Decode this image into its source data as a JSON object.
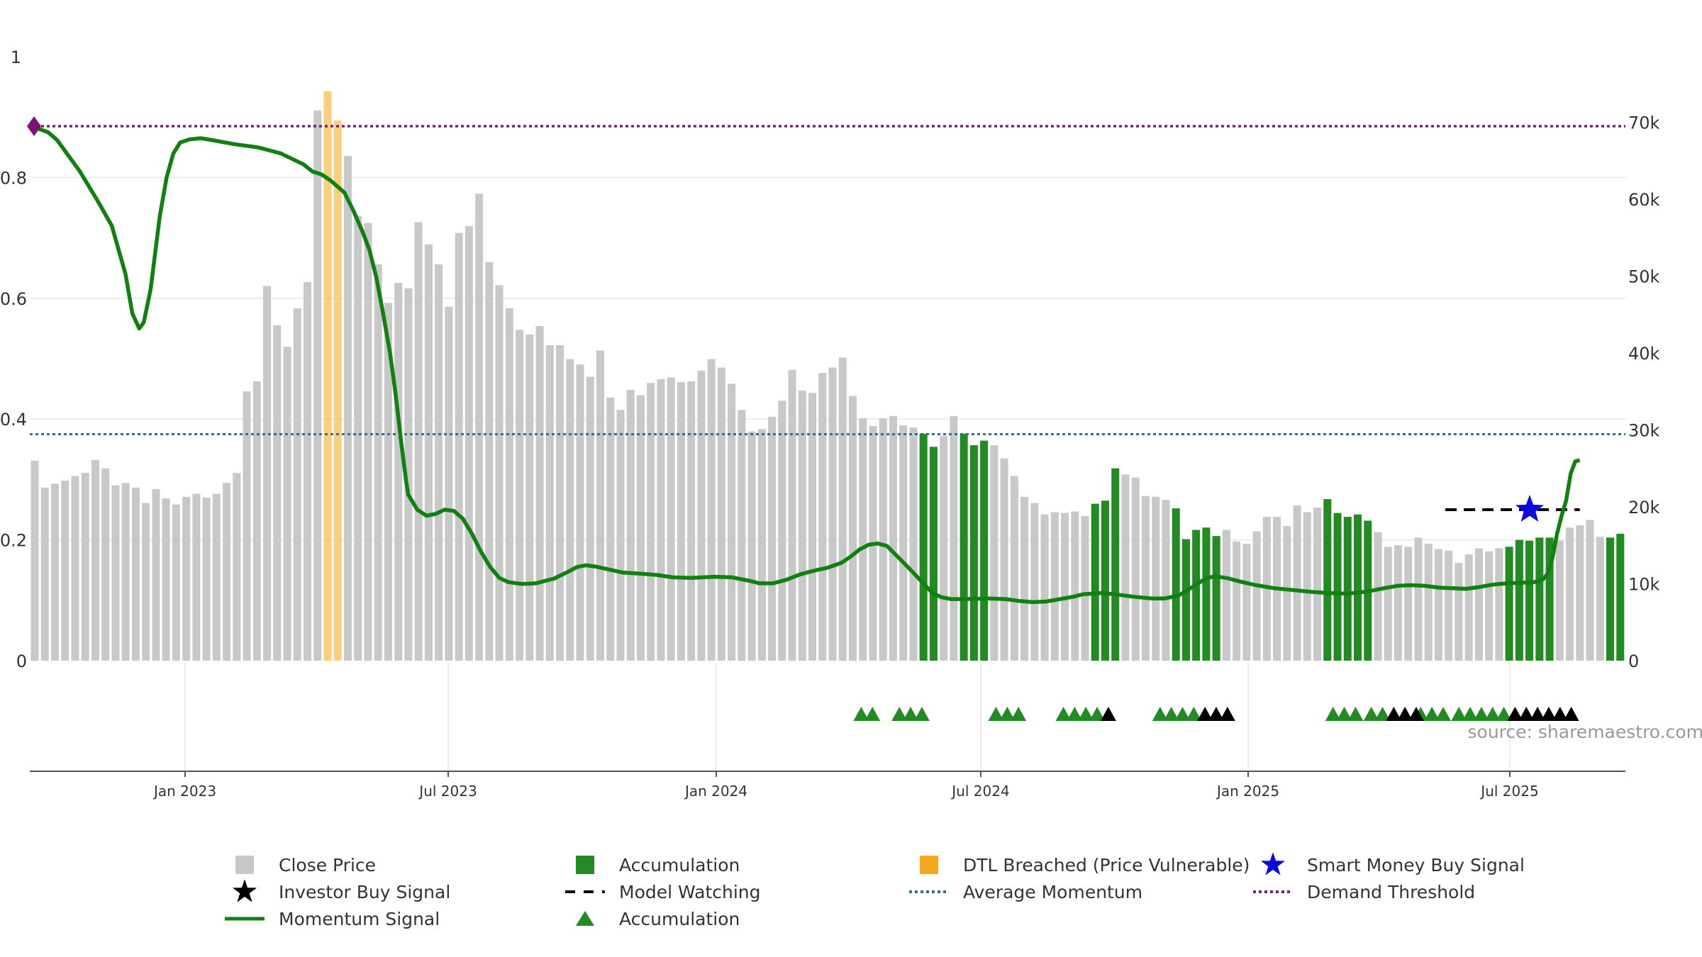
{
  "chart_data": {
    "type": "bar",
    "title": "",
    "x_ticks": [
      "Jan 2023",
      "Jul 2023",
      "Jan 2024",
      "Jul 2024",
      "Jan 2025",
      "Jul 2025"
    ],
    "y_left": {
      "ticks": [
        "0",
        "0.2",
        "0.4",
        "0.6",
        "0.8",
        "1"
      ],
      "range": [
        0,
        1
      ]
    },
    "y_right": {
      "ticks": [
        "0",
        "10k",
        "20k",
        "30k",
        "40k",
        "50k",
        "60k",
        "70k"
      ],
      "range": [
        0,
        78500
      ]
    },
    "grid": true,
    "series": {
      "close_price": [
        26.0,
        22.5,
        23.0,
        23.4,
        24.0,
        24.4,
        26.1,
        25.0,
        22.8,
        23.1,
        22.5,
        20.5,
        22.3,
        21.1,
        20.3,
        21.3,
        21.7,
        21.2,
        21.7,
        23.1,
        24.4,
        35.0,
        36.3,
        48.7,
        43.6,
        40.8,
        45.8,
        49.2,
        71.5,
        74.0,
        70.2,
        65.6,
        57.8,
        56.9,
        51.5,
        46.5,
        49.1,
        48.4,
        57.0,
        54.1,
        51.5,
        46.0,
        55.6,
        56.5,
        60.7,
        51.8,
        48.8,
        45.8,
        43.0,
        42.4,
        43.5,
        41.0,
        41.0,
        39.2,
        38.5,
        36.9,
        40.3,
        34.2,
        32.6,
        35.2,
        34.5,
        36.1,
        36.6,
        36.8,
        36.2,
        36.3,
        37.7,
        39.2,
        38.1,
        36.0,
        32.6,
        29.8,
        30.1,
        31.7,
        33.8,
        37.8,
        35.1,
        34.8,
        37.4,
        38.1,
        39.4,
        34.4,
        31.5,
        30.5,
        31.5,
        31.8,
        30.6,
        30.3,
        29.5,
        27.8,
        29.2,
        31.8,
        29.5,
        28.0,
        28.6,
        28.0,
        26.3,
        24.0,
        21.3,
        20.5,
        19.0,
        19.3,
        19.2,
        19.4,
        18.8,
        20.4,
        20.8,
        25.0,
        24.2,
        23.8,
        21.4,
        21.3,
        20.9,
        19.8,
        15.8,
        17.0,
        17.3,
        16.2,
        17.0,
        15.5,
        15.2,
        16.8,
        18.7,
        18.7,
        17.5,
        20.2,
        19.3,
        19.9,
        21.0,
        19.2,
        18.7,
        19.0,
        18.2,
        16.7,
        14.8,
        15.0,
        14.8,
        16.0,
        15.2,
        14.5,
        14.3,
        12.7,
        13.8,
        14.6,
        14.2,
        14.6,
        14.8,
        15.7,
        15.6,
        16.0,
        16.0,
        15.6,
        17.3,
        17.6,
        18.3,
        16.1,
        16.0,
        16.5
      ],
      "bar_state": "NNNNNNNNNNNNNNNNNNNNNNNNNNNNNDDNNNNNNNNNNNNNNNNNNNNNNNNNNNNNNNNNNNNNNNNNNNNNNNNNNNNNNNNNAANNAAANNNNNNNNNNAAANNNNNAAAAANNNNNNNNNNAAAAANNNNNNNNNNNNNAAAAANNNNNAAAAAAAANNN",
      "momentum_signal": [
        [
          0,
          0.886
        ],
        [
          8,
          0.875
        ],
        [
          12,
          0.862
        ],
        [
          22,
          0.81
        ],
        [
          30,
          0.76
        ],
        [
          36,
          0.72
        ],
        [
          42,
          0.64
        ],
        [
          45,
          0.575
        ],
        [
          48,
          0.55
        ],
        [
          50,
          0.56
        ],
        [
          53,
          0.615
        ],
        [
          57,
          0.735
        ],
        [
          60,
          0.8
        ],
        [
          63,
          0.84
        ],
        [
          66,
          0.858
        ],
        [
          70,
          0.863
        ],
        [
          75,
          0.865
        ],
        [
          80,
          0.862
        ],
        [
          90,
          0.855
        ],
        [
          100,
          0.85
        ],
        [
          110,
          0.84
        ],
        [
          120,
          0.822
        ],
        [
          124,
          0.81
        ],
        [
          128,
          0.805
        ],
        [
          132,
          0.795
        ],
        [
          138,
          0.775
        ],
        [
          142,
          0.745
        ],
        [
          146,
          0.71
        ],
        [
          149,
          0.68
        ],
        [
          152,
          0.635
        ],
        [
          155,
          0.575
        ],
        [
          158,
          0.51
        ],
        [
          160,
          0.455
        ],
        [
          161,
          0.425
        ],
        [
          163,
          0.36
        ],
        [
          165,
          0.3
        ],
        [
          166,
          0.275
        ],
        [
          170,
          0.25
        ],
        [
          174,
          0.24
        ],
        [
          178,
          0.243
        ],
        [
          182,
          0.25
        ],
        [
          186,
          0.248
        ],
        [
          190,
          0.235
        ],
        [
          194,
          0.21
        ],
        [
          198,
          0.18
        ],
        [
          202,
          0.155
        ],
        [
          206,
          0.137
        ],
        [
          210,
          0.13
        ],
        [
          216,
          0.127
        ],
        [
          222,
          0.128
        ],
        [
          230,
          0.136
        ],
        [
          236,
          0.147
        ],
        [
          240,
          0.155
        ],
        [
          244,
          0.158
        ],
        [
          248,
          0.156
        ],
        [
          254,
          0.151
        ],
        [
          260,
          0.146
        ],
        [
          268,
          0.144
        ],
        [
          275,
          0.142
        ],
        [
          282,
          0.138
        ],
        [
          290,
          0.137
        ],
        [
          300,
          0.139
        ],
        [
          308,
          0.138
        ],
        [
          316,
          0.132
        ],
        [
          320,
          0.128
        ],
        [
          326,
          0.128
        ],
        [
          332,
          0.134
        ],
        [
          338,
          0.143
        ],
        [
          344,
          0.149
        ],
        [
          350,
          0.154
        ],
        [
          356,
          0.162
        ],
        [
          360,
          0.172
        ],
        [
          364,
          0.184
        ],
        [
          368,
          0.192
        ],
        [
          372,
          0.194
        ],
        [
          376,
          0.19
        ],
        [
          380,
          0.175
        ],
        [
          386,
          0.152
        ],
        [
          392,
          0.128
        ],
        [
          396,
          0.112
        ],
        [
          400,
          0.105
        ],
        [
          404,
          0.102
        ],
        [
          410,
          0.102
        ],
        [
          420,
          0.103
        ],
        [
          428,
          0.102
        ],
        [
          434,
          0.099
        ],
        [
          440,
          0.097
        ],
        [
          446,
          0.098
        ],
        [
          452,
          0.102
        ],
        [
          458,
          0.106
        ],
        [
          462,
          0.11
        ],
        [
          470,
          0.112
        ],
        [
          476,
          0.11
        ],
        [
          484,
          0.106
        ],
        [
          492,
          0.103
        ],
        [
          498,
          0.103
        ],
        [
          504,
          0.108
        ],
        [
          508,
          0.117
        ],
        [
          512,
          0.127
        ],
        [
          516,
          0.136
        ],
        [
          520,
          0.14
        ],
        [
          526,
          0.136
        ],
        [
          532,
          0.13
        ],
        [
          538,
          0.125
        ],
        [
          546,
          0.12
        ],
        [
          554,
          0.117
        ],
        [
          562,
          0.114
        ],
        [
          570,
          0.112
        ],
        [
          578,
          0.111
        ],
        [
          586,
          0.114
        ],
        [
          594,
          0.12
        ],
        [
          600,
          0.124
        ],
        [
          606,
          0.125
        ],
        [
          612,
          0.124
        ],
        [
          618,
          0.121
        ],
        [
          624,
          0.12
        ],
        [
          630,
          0.119
        ],
        [
          636,
          0.122
        ],
        [
          642,
          0.126
        ],
        [
          648,
          0.128
        ],
        [
          654,
          0.129
        ],
        [
          660,
          0.13
        ],
        [
          664,
          0.135
        ],
        [
          666,
          0.145
        ],
        [
          668,
          0.17
        ],
        [
          670,
          0.21
        ],
        [
          672,
          0.24
        ],
        [
          674,
          0.265
        ],
        [
          676,
          0.31
        ],
        [
          678,
          0.33
        ],
        [
          680,
          0.332
        ]
      ],
      "average_momentum": 0.375,
      "demand_threshold": 0.885,
      "model_watching": {
        "from_x": 621,
        "to_x": 680,
        "y": 0.25
      },
      "smart_money_buy": {
        "x": 658,
        "y": 0.25
      },
      "start_marker": {
        "x": 0,
        "y": 0.885
      },
      "accumulation_triangles": [
        370,
        375,
        387,
        392,
        397,
        430,
        435,
        440,
        460,
        465,
        470,
        475,
        503,
        508,
        513,
        518,
        580,
        585,
        590,
        597,
        602,
        619,
        624,
        629,
        636,
        641,
        646,
        651,
        656
      ],
      "investor_buy_triangles": [
        480,
        523,
        528,
        533,
        607,
        612,
        617,
        661,
        666,
        671,
        676,
        681,
        686
      ]
    },
    "source_note": "source: sharemaestro.com",
    "legend": {
      "items": [
        {
          "label": "Close Price",
          "symbol": "grey-square"
        },
        {
          "label": "Accumulation",
          "symbol": "green-square"
        },
        {
          "label": "DTL Breached (Price Vulnerable)",
          "symbol": "orange-square"
        },
        {
          "label": "Smart Money Buy Signal",
          "symbol": "blue-star"
        },
        {
          "label": "Investor Buy Signal",
          "symbol": "black-star"
        },
        {
          "label": "Model Watching",
          "symbol": "black-dash"
        },
        {
          "label": "Average Momentum",
          "symbol": "blue-dots"
        },
        {
          "label": "Demand Threshold",
          "symbol": "purple-dots"
        },
        {
          "label": "Momentum Signal",
          "symbol": "green-line"
        },
        {
          "label": "Accumulation",
          "symbol": "green-triangle"
        }
      ]
    },
    "colors": {
      "price_bar": "#c8c8c8",
      "accumulation": "#228b22",
      "dtl": "#f9ca6e",
      "momentum": "#108010",
      "average": "#2e6f96",
      "threshold": "#7a1f7a",
      "smart_money": "#0b0bdd",
      "investor": "#000000",
      "start_marker": "#7b1478"
    }
  }
}
